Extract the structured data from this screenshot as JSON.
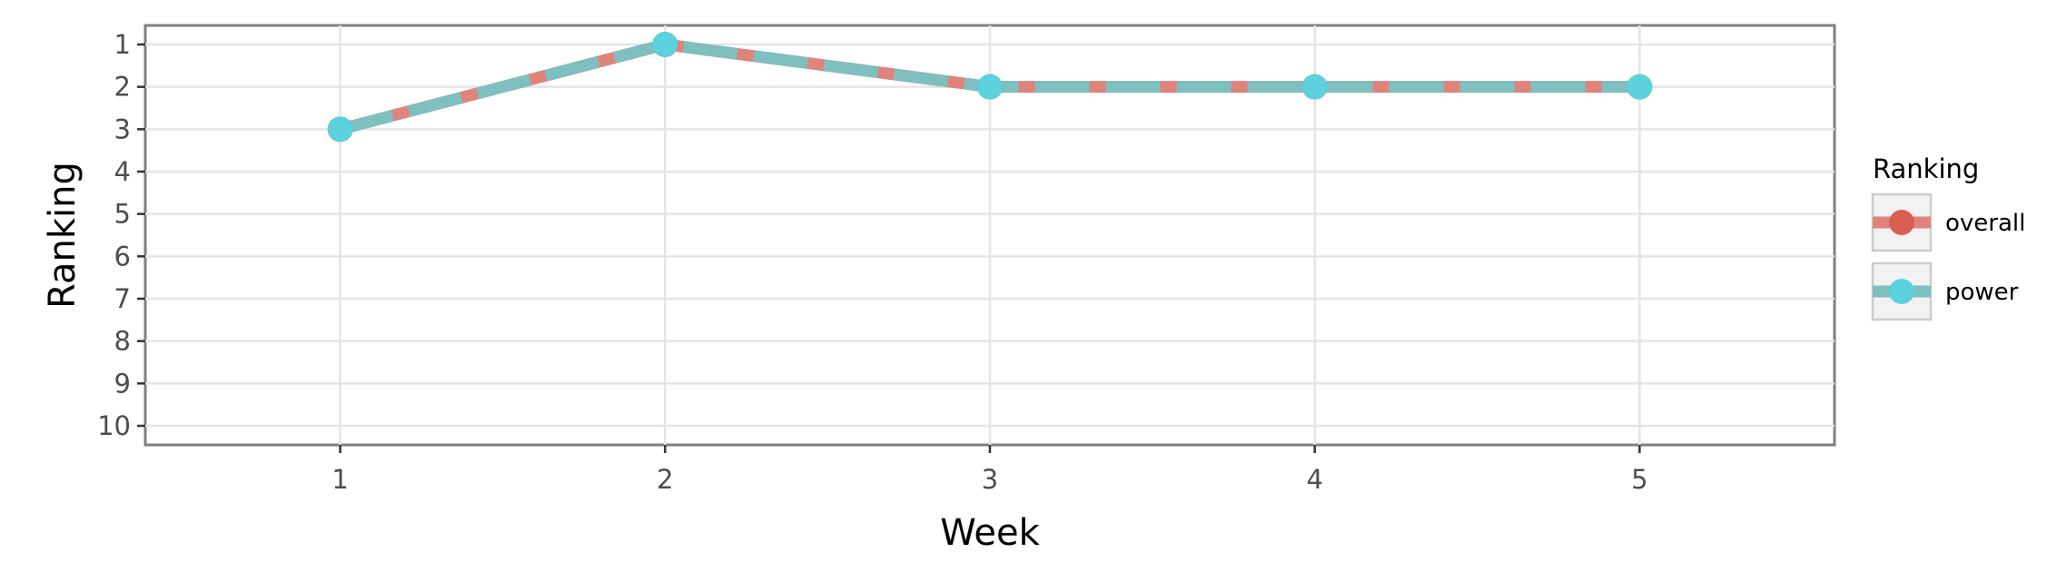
{
  "chart_data": {
    "type": "line",
    "xlabel": "Week",
    "ylabel": "Ranking",
    "x": [
      1,
      2,
      3,
      4,
      5
    ],
    "xlim": [
      0.4,
      5.6
    ],
    "ylim": [
      10.45,
      0.55
    ],
    "y_reversed": true,
    "yticks": [
      1,
      2,
      3,
      4,
      5,
      6,
      7,
      8,
      9,
      10
    ],
    "grid": true,
    "legend": {
      "title": "Ranking",
      "placement": "right"
    },
    "series": [
      {
        "name": "overall",
        "values": [
          3,
          1,
          2,
          2,
          2
        ],
        "color": "#e0837a",
        "point_color": "#d95f52",
        "line_style": "solid"
      },
      {
        "name": "power",
        "values": [
          3,
          1,
          2,
          2,
          2
        ],
        "color": "#7fbfc0",
        "point_color": "#5bd2dd",
        "line_style": "dashed"
      }
    ]
  }
}
